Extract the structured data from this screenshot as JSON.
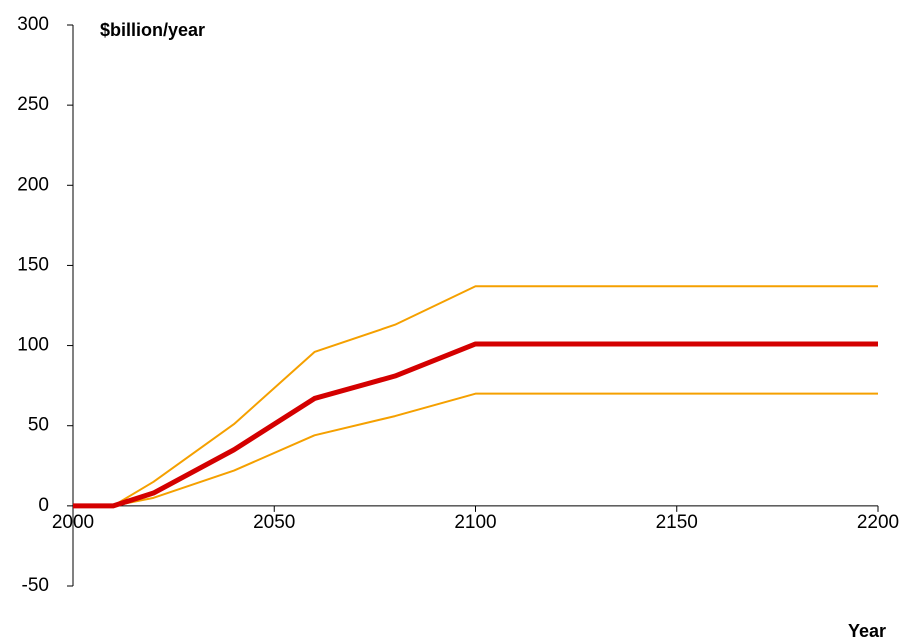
{
  "chart_data": {
    "type": "line",
    "y_label": "$billion/year",
    "x_label": "Year",
    "x": [
      2000,
      2010,
      2020,
      2040,
      2060,
      2080,
      2100,
      2150,
      2200
    ],
    "series": [
      {
        "color": "#f5a000",
        "width": 2,
        "values": [
          0,
          0,
          15,
          51,
          96,
          113,
          137,
          137,
          137
        ]
      },
      {
        "color": "#f5a000",
        "width": 2,
        "values": [
          0,
          0,
          5,
          22,
          44,
          56,
          70,
          70,
          70
        ]
      },
      {
        "color": "#d40000",
        "width": 5,
        "values": [
          0,
          0,
          8,
          35,
          67,
          81,
          101,
          101,
          101
        ]
      }
    ],
    "xlim": [
      2000,
      2200
    ],
    "xticks": [
      2000,
      2050,
      2100,
      2150,
      2200
    ],
    "ylim": [
      -50,
      300
    ],
    "yticks": [
      -50,
      0,
      50,
      100,
      150,
      200,
      250,
      300
    ],
    "grid": false
  }
}
